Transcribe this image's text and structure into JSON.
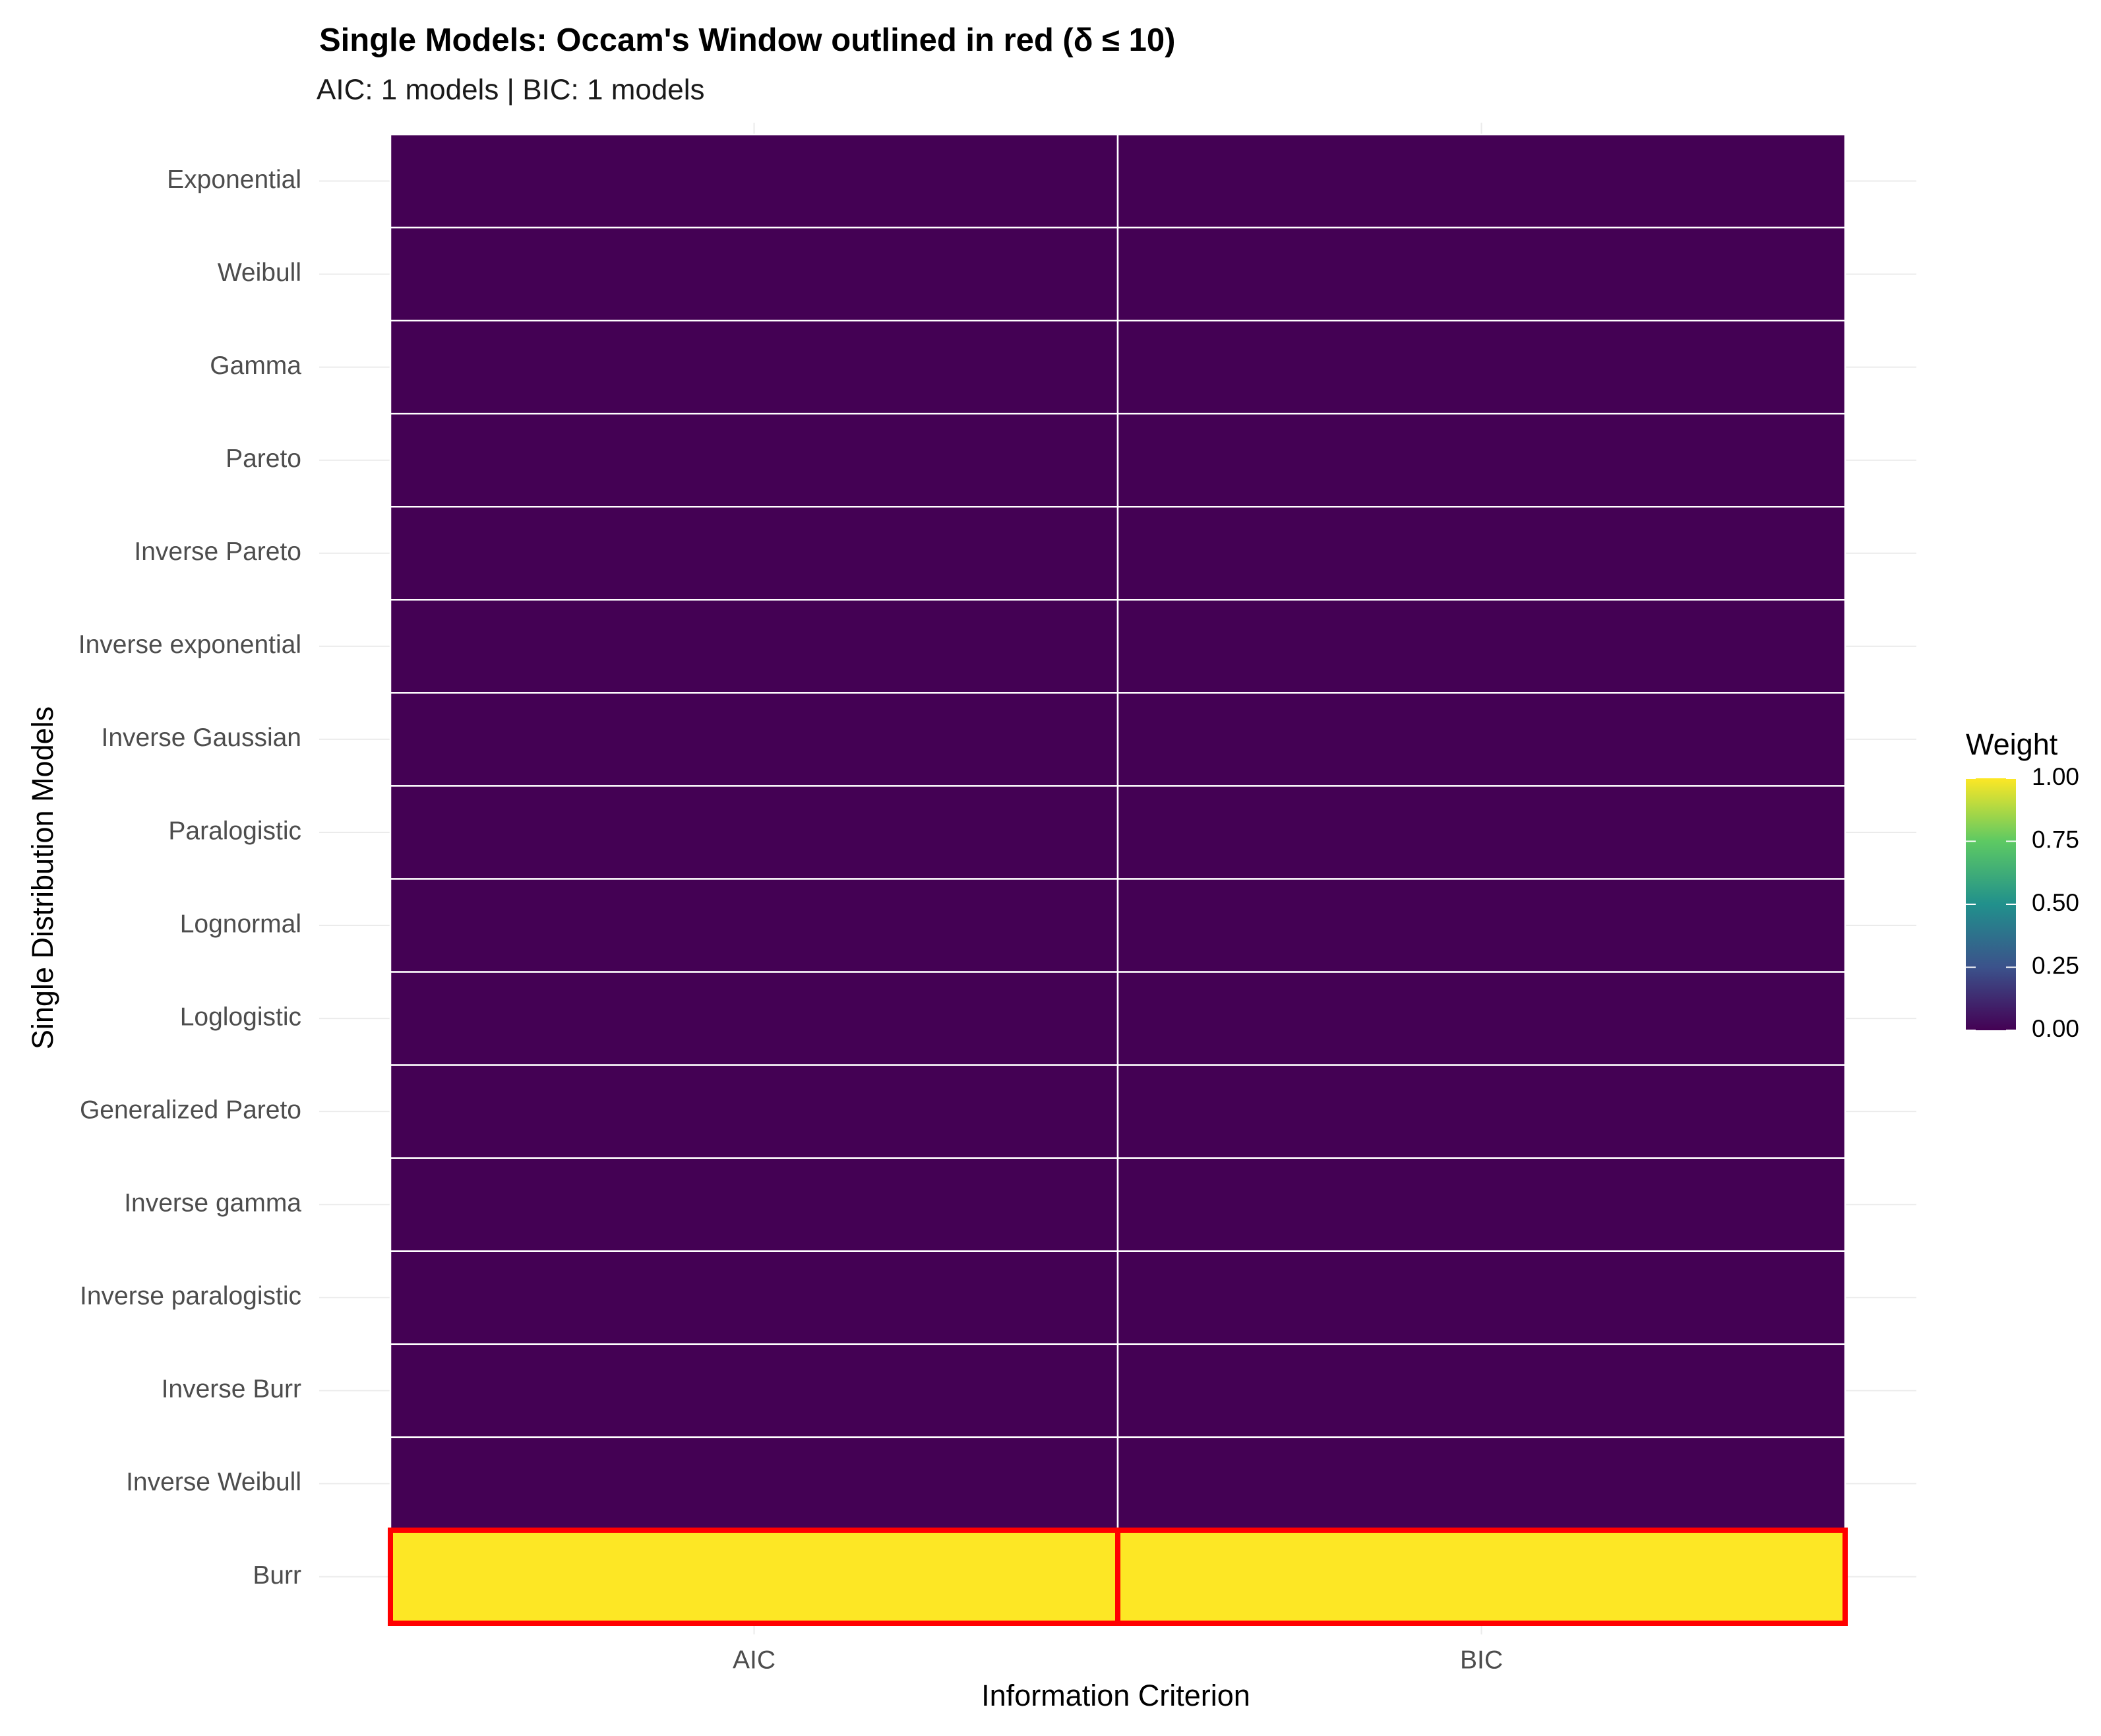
{
  "chart_data": {
    "type": "heatmap",
    "title": "Single Models: Occam's Window outlined in red (δ ≤ 10)",
    "subtitle": "AIC: 1 models | BIC: 1 models",
    "x_label": "Information Criterion",
    "y_label": "Single Distribution Models",
    "x": [
      "AIC",
      "BIC"
    ],
    "y": [
      "Exponential",
      "Weibull",
      "Gamma",
      "Pareto",
      "Inverse Pareto",
      "Inverse exponential",
      "Inverse Gaussian",
      "Paralogistic",
      "Lognormal",
      "Loglogistic",
      "Generalized Pareto",
      "Inverse gamma",
      "Inverse paralogistic",
      "Inverse Burr",
      "Inverse Weibull",
      "Burr"
    ],
    "values": [
      [
        0,
        0
      ],
      [
        0,
        0
      ],
      [
        0,
        0
      ],
      [
        0,
        0
      ],
      [
        0,
        0
      ],
      [
        0,
        0
      ],
      [
        0,
        0
      ],
      [
        0,
        0
      ],
      [
        0,
        0
      ],
      [
        0,
        0
      ],
      [
        0,
        0
      ],
      [
        0,
        0
      ],
      [
        0,
        0
      ],
      [
        0,
        0
      ],
      [
        0,
        0
      ],
      [
        1,
        1
      ]
    ],
    "in_window": [
      [
        false,
        false
      ],
      [
        false,
        false
      ],
      [
        false,
        false
      ],
      [
        false,
        false
      ],
      [
        false,
        false
      ],
      [
        false,
        false
      ],
      [
        false,
        false
      ],
      [
        false,
        false
      ],
      [
        false,
        false
      ],
      [
        false,
        false
      ],
      [
        false,
        false
      ],
      [
        false,
        false
      ],
      [
        false,
        false
      ],
      [
        false,
        false
      ],
      [
        false,
        false
      ],
      [
        true,
        true
      ]
    ],
    "outline_color": "#ff0000",
    "legend_title": "Weight",
    "colorscale": [
      "#440154",
      "#3b528b",
      "#21908c",
      "#5dc963",
      "#fde725"
    ],
    "clim": [
      0,
      1
    ],
    "cticks": [
      {
        "value": 0,
        "label": "0.00"
      },
      {
        "value": 0.25,
        "label": "0.25"
      },
      {
        "value": 0.5,
        "label": "0.50"
      },
      {
        "value": 0.75,
        "label": "0.75"
      },
      {
        "value": 1,
        "label": "1.00"
      }
    ],
    "legend_position": "right",
    "grid": true
  }
}
